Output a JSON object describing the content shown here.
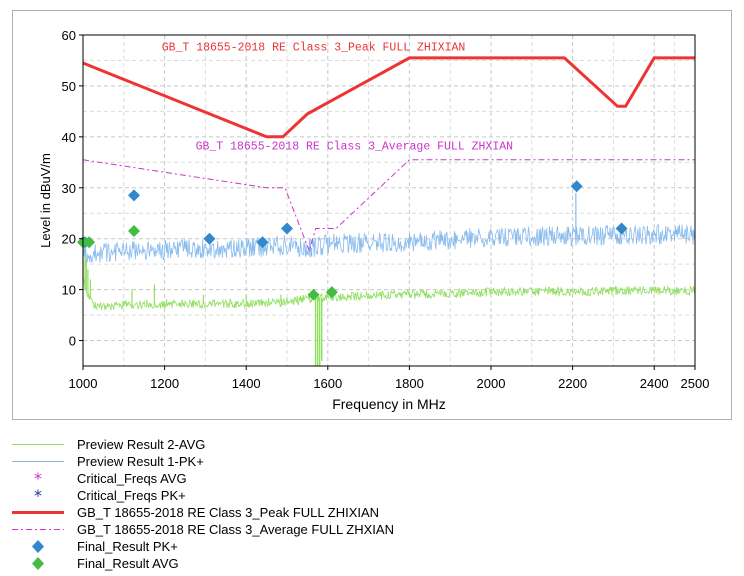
{
  "chart_data": {
    "type": "line",
    "xlabel": "Frequency in MHz",
    "ylabel": "Level in dBuV/m",
    "xlim": [
      1000,
      2500
    ],
    "ylim": [
      -5,
      60
    ],
    "x_ticks": [
      1000,
      1200,
      1400,
      1600,
      1800,
      2000,
      2200,
      2400,
      2500
    ],
    "y_ticks": [
      0,
      10,
      20,
      30,
      40,
      50,
      60
    ],
    "grid": true,
    "legend_placement": "bottom",
    "series": [
      {
        "name": "Preview Result 2-AVG",
        "type": "line",
        "color": "#90e060",
        "trend": [
          [
            1000,
            12
          ],
          [
            1010,
            9.5
          ],
          [
            1025,
            7
          ],
          [
            1060,
            6.5
          ],
          [
            1100,
            7
          ],
          [
            1200,
            7.2
          ],
          [
            1300,
            7.2
          ],
          [
            1400,
            7.3
          ],
          [
            1500,
            7.6
          ],
          [
            1550,
            8.2
          ],
          [
            1600,
            8.5
          ],
          [
            1700,
            8.8
          ],
          [
            1800,
            9
          ],
          [
            1900,
            9.2
          ],
          [
            2000,
            9.5
          ],
          [
            2100,
            9.6
          ],
          [
            2200,
            9.6
          ],
          [
            2300,
            9.8
          ],
          [
            2400,
            9.8
          ],
          [
            2500,
            9.8
          ]
        ],
        "spikes": [
          [
            1000,
            19
          ],
          [
            1005,
            18
          ],
          [
            1008,
            16
          ],
          [
            1012,
            14
          ],
          [
            1018,
            12
          ],
          [
            1120,
            10
          ],
          [
            1175,
            11
          ],
          [
            1295,
            9
          ],
          [
            1400,
            9
          ],
          [
            1485,
            9
          ],
          [
            1555,
            9
          ],
          [
            1600,
            10
          ]
        ],
        "dips": [
          [
            1570,
            -5
          ],
          [
            1575,
            -5
          ],
          [
            1580,
            -5
          ],
          [
            1585,
            -4
          ]
        ]
      },
      {
        "name": "Preview Result 1-PK+",
        "type": "line",
        "color": "#88bbee",
        "trend": [
          [
            1000,
            17
          ],
          [
            1100,
            17.5
          ],
          [
            1200,
            17.8
          ],
          [
            1300,
            18
          ],
          [
            1400,
            18.2
          ],
          [
            1500,
            18.8
          ],
          [
            1550,
            18
          ],
          [
            1600,
            19
          ],
          [
            1700,
            19.2
          ],
          [
            1800,
            19.5
          ],
          [
            1900,
            19.8
          ],
          [
            2000,
            20.5
          ],
          [
            2100,
            20.5
          ],
          [
            2200,
            20.5
          ],
          [
            2300,
            20.8
          ],
          [
            2400,
            20.8
          ],
          [
            2500,
            20.8
          ]
        ],
        "spikes": [
          [
            2208,
            29
          ]
        ],
        "dips": [
          [
            1560,
            16.5
          ]
        ]
      },
      {
        "name": "Critical_Freqs AVG",
        "type": "scatter",
        "color": "#cc33cc",
        "points": []
      },
      {
        "name": "Critical_Freqs PK+",
        "type": "scatter",
        "color": "#223399",
        "points": []
      },
      {
        "name": "GB_T 18655-2018 RE Class 3_Peak FULL ZHIXIAN",
        "type": "line",
        "color": "#ee3333",
        "points": [
          [
            1000,
            54.5
          ],
          [
            1450,
            40
          ],
          [
            1490,
            40
          ],
          [
            1550,
            44.5
          ],
          [
            1800,
            55.5
          ],
          [
            2180,
            55.5
          ],
          [
            2310,
            46
          ],
          [
            2330,
            46
          ],
          [
            2400,
            55.5
          ],
          [
            2500,
            55.5
          ]
        ]
      },
      {
        "name": "GB_T 18655-2018 RE Class 3_Average FULL ZHXIAN",
        "type": "line",
        "color": "#cc33cc",
        "dashed": true,
        "points": [
          [
            1000,
            35.5
          ],
          [
            1450,
            30
          ],
          [
            1495,
            30
          ],
          [
            1555,
            17.5
          ],
          [
            1570,
            22
          ],
          [
            1620,
            22
          ],
          [
            1800,
            35.5
          ],
          [
            2500,
            35.5
          ]
        ]
      },
      {
        "name": "Final_Result PK+",
        "type": "scatter",
        "color": "#3388cc",
        "points": [
          [
            1005,
            19.3
          ],
          [
            1125,
            28.5
          ],
          [
            1310,
            20
          ],
          [
            1440,
            19.3
          ],
          [
            1500,
            22
          ],
          [
            2210,
            30.3
          ],
          [
            2320,
            22
          ]
        ]
      },
      {
        "name": "Final_Result AVG",
        "type": "scatter",
        "color": "#44bb44",
        "points": [
          [
            1000,
            19.3
          ],
          [
            1015,
            19.3
          ],
          [
            1125,
            21.5
          ],
          [
            1565,
            9
          ],
          [
            1610,
            9.5
          ]
        ]
      }
    ],
    "annotations": [
      {
        "text": "GB_T 18655-2018 RE Class 3_Peak FULL ZHIXIAN",
        "x": 1565,
        "y": 57,
        "color": "#ee3333"
      },
      {
        "text": "GB_T 18655-2018 RE Class 3_Average FULL ZHXIAN",
        "x": 1665,
        "y": 37.5,
        "color": "#cc33cc"
      }
    ]
  },
  "legend": {
    "items": [
      {
        "label": "Preview Result 2-AVG",
        "symbol": "thin-line",
        "color": "#90e060"
      },
      {
        "label": "Preview Result 1-PK+",
        "symbol": "thin-line",
        "color": "#88bbee"
      },
      {
        "label": "Critical_Freqs AVG",
        "symbol": "asterisk",
        "color": "#cc33cc"
      },
      {
        "label": "Critical_Freqs PK+",
        "symbol": "asterisk",
        "color": "#223399"
      },
      {
        "label": "GB_T 18655-2018 RE Class 3_Peak FULL ZHIXIAN",
        "symbol": "thick-line",
        "color": "#ee3333"
      },
      {
        "label": "GB_T 18655-2018 RE Class 3_Average FULL ZHXIAN",
        "symbol": "dash-dot-line",
        "color": "#cc33cc"
      },
      {
        "label": "Final_Result PK+",
        "symbol": "diamond",
        "color": "#3388cc"
      },
      {
        "label": "Final_Result AVG",
        "symbol": "diamond",
        "color": "#44bb44"
      }
    ]
  }
}
